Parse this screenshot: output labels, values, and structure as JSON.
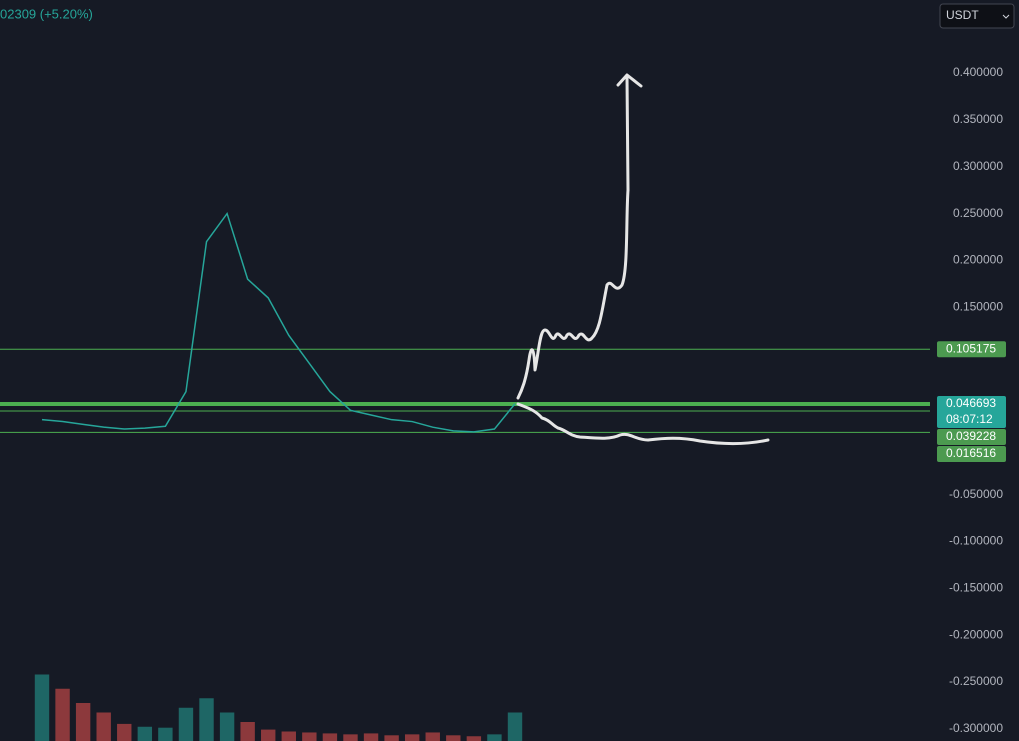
{
  "header_text": "02309 (+5.20%)",
  "currency": "USDT",
  "chart_data": {
    "type": "line",
    "categories": [
      null,
      null,
      null,
      null,
      null,
      null,
      null,
      null,
      null,
      null,
      null,
      null,
      null,
      null,
      null,
      null,
      null,
      null,
      null,
      null,
      null,
      null,
      null,
      null
    ],
    "series": [
      {
        "color": "#26a69a",
        "values": [
          0.03,
          0.028,
          0.025,
          0.022,
          0.02,
          0.021,
          0.023,
          0.06,
          0.22,
          0.25,
          0.18,
          0.16,
          0.12,
          0.09,
          0.06,
          0.04,
          0.035,
          0.03,
          0.028,
          0.022,
          0.018,
          0.017,
          0.02,
          0.047
        ]
      }
    ],
    "volume": [
      70,
      55,
      40,
      30,
      18,
      15,
      14,
      35,
      45,
      30,
      20,
      12,
      10,
      9,
      8,
      7,
      8,
      6,
      7,
      9,
      6,
      5,
      7,
      30
    ],
    "volume_lim": [
      0,
      100
    ],
    "ylim": [
      -0.313,
      0.478
    ],
    "yticks": [
      {
        "value": 0.4,
        "label": "0.400000"
      },
      {
        "value": 0.35,
        "label": "0.350000"
      },
      {
        "value": 0.3,
        "label": "0.300000"
      },
      {
        "value": 0.25,
        "label": "0.250000"
      },
      {
        "value": 0.2,
        "label": "0.200000"
      },
      {
        "value": 0.15,
        "label": "0.150000"
      },
      {
        "value": -0.05,
        "label": "-0.050000"
      },
      {
        "value": -0.1,
        "label": "-0.100000"
      },
      {
        "value": -0.15,
        "label": "-0.150000"
      },
      {
        "value": -0.2,
        "label": "-0.200000"
      },
      {
        "value": -0.25,
        "label": "-0.250000"
      },
      {
        "value": -0.3,
        "label": "-0.300000"
      }
    ],
    "price_lines": [
      {
        "value": 0.105175,
        "color": "#4caf50"
      },
      {
        "value": 0.046693,
        "color": "#4caf50",
        "countdown": "08:07:12"
      },
      {
        "value": 0.039228,
        "color": "#4caf50"
      },
      {
        "value": 0.016516,
        "color": "#4caf50"
      }
    ]
  }
}
